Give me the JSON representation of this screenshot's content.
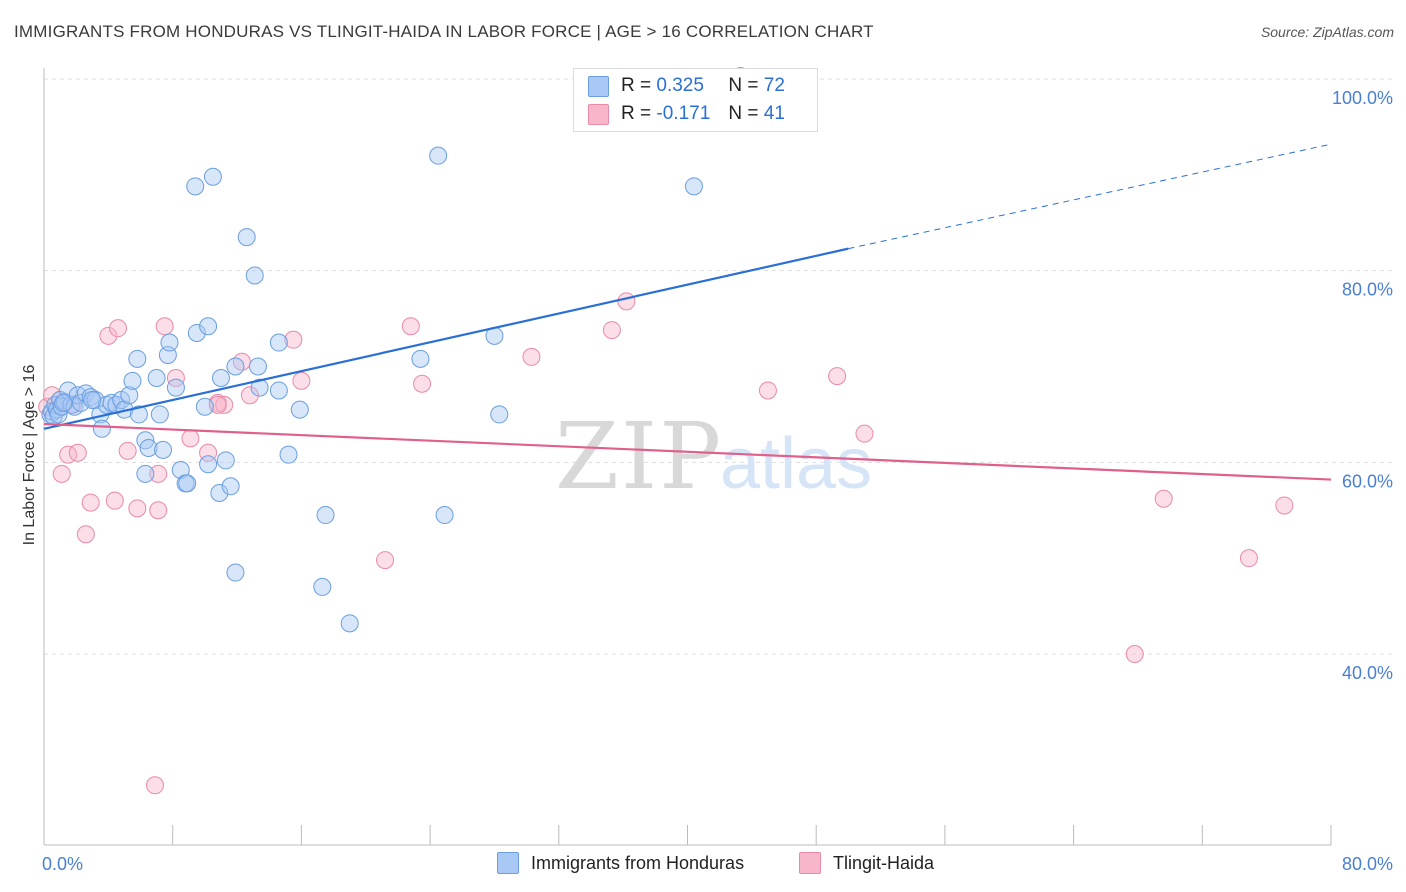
{
  "header": {
    "title": "IMMIGRANTS FROM HONDURAS VS TLINGIT-HAIDA IN LABOR FORCE | AGE > 16 CORRELATION CHART",
    "source": "Source: ZipAtlas.com"
  },
  "watermark": {
    "zip": "ZIP",
    "atlas": "atlas"
  },
  "legend": {
    "r_label": "R =",
    "n_label": "N =",
    "rows": [
      {
        "r": "0.325",
        "n": "72",
        "color": "#a9c8f5"
      },
      {
        "r": "-0.171",
        "n": "41",
        "color": "#f7b6c9"
      }
    ]
  },
  "bottom_legend": {
    "items": [
      {
        "label": "Immigrants from Honduras",
        "color": "#a9c8f5"
      },
      {
        "label": "Tlingit-Haida",
        "color": "#f7b6c9"
      }
    ]
  },
  "colors": {
    "blue_fill": "#a9c8f5",
    "blue_stroke": "#6a9ee0",
    "blue_line": "#2a6fd6",
    "pink_fill": "#f7b6c9",
    "pink_stroke": "#e98aa8",
    "pink_line": "#e05f8c",
    "grid": "#dddddd",
    "tick_text": "#4a7fd0"
  },
  "chart_data": {
    "type": "scatter",
    "title": "IMMIGRANTS FROM HONDURAS VS TLINGIT-HAIDA IN LABOR FORCE | AGE > 16 CORRELATION CHART",
    "xlabel": "",
    "ylabel": "In Labor Force | Age > 16",
    "xlim": [
      0,
      80
    ],
    "ylim": [
      20,
      102
    ],
    "x_ticks": [
      0,
      8,
      16,
      24,
      32,
      40,
      48,
      56,
      64,
      72,
      80
    ],
    "x_tick_labels": [
      {
        "value": 0,
        "label": "0.0%"
      },
      {
        "value": 80,
        "label": "80.0%"
      }
    ],
    "y_ticks": [
      {
        "value": 100,
        "label": "100.0%"
      },
      {
        "value": 80,
        "label": "80.0%"
      },
      {
        "value": 60,
        "label": "60.0%"
      },
      {
        "value": 40,
        "label": "40.0%"
      }
    ],
    "grid": true,
    "legend_position": "top-center",
    "series": [
      {
        "name": "Immigrants from Honduras",
        "color": "#a9c8f5",
        "points": [
          [
            0.4,
            65.0
          ],
          [
            0.5,
            65.3
          ],
          [
            0.6,
            64.8
          ],
          [
            0.7,
            66.0
          ],
          [
            0.8,
            65.5
          ],
          [
            0.9,
            65.0
          ],
          [
            1.0,
            66.5
          ],
          [
            1.1,
            65.8
          ],
          [
            1.3,
            66.3
          ],
          [
            1.5,
            67.5
          ],
          [
            1.7,
            66.0
          ],
          [
            1.9,
            65.8
          ],
          [
            2.1,
            67.0
          ],
          [
            2.3,
            66.2
          ],
          [
            2.6,
            67.2
          ],
          [
            2.9,
            66.8
          ],
          [
            3.2,
            66.5
          ],
          [
            3.5,
            65.0
          ],
          [
            3.6,
            63.5
          ],
          [
            3.9,
            66.0
          ],
          [
            4.2,
            66.2
          ],
          [
            4.5,
            66.0
          ],
          [
            4.8,
            66.5
          ],
          [
            5.0,
            65.5
          ],
          [
            5.3,
            67.0
          ],
          [
            5.5,
            68.5
          ],
          [
            5.9,
            65.0
          ],
          [
            5.8,
            70.8
          ],
          [
            6.3,
            62.3
          ],
          [
            6.5,
            61.5
          ],
          [
            6.3,
            58.8
          ],
          [
            7.0,
            68.8
          ],
          [
            7.2,
            65.0
          ],
          [
            7.4,
            61.3
          ],
          [
            7.7,
            71.2
          ],
          [
            7.8,
            72.5
          ],
          [
            8.2,
            67.8
          ],
          [
            8.5,
            59.2
          ],
          [
            8.8,
            57.8
          ],
          [
            8.9,
            57.8
          ],
          [
            9.4,
            88.8
          ],
          [
            9.5,
            73.5
          ],
          [
            10.0,
            65.8
          ],
          [
            10.2,
            59.8
          ],
          [
            10.5,
            89.8
          ],
          [
            10.2,
            74.2
          ],
          [
            10.9,
            56.8
          ],
          [
            11.0,
            68.8
          ],
          [
            11.3,
            60.2
          ],
          [
            11.6,
            57.5
          ],
          [
            11.9,
            70.0
          ],
          [
            11.9,
            48.5
          ],
          [
            12.6,
            83.5
          ],
          [
            13.1,
            79.5
          ],
          [
            13.3,
            70.0
          ],
          [
            13.4,
            67.8
          ],
          [
            14.6,
            67.5
          ],
          [
            14.6,
            72.5
          ],
          [
            15.2,
            60.8
          ],
          [
            15.9,
            65.5
          ],
          [
            17.5,
            54.5
          ],
          [
            17.3,
            47.0
          ],
          [
            19.0,
            43.2
          ],
          [
            23.4,
            70.8
          ],
          [
            24.5,
            92.0
          ],
          [
            24.9,
            54.5
          ],
          [
            28.0,
            73.2
          ],
          [
            28.3,
            65.0
          ],
          [
            40.4,
            88.8
          ],
          [
            43.3,
            100.3
          ],
          [
            1.2,
            66.2
          ],
          [
            3.0,
            66.5
          ]
        ]
      },
      {
        "name": "Tlingit-Haida",
        "color": "#f7b6c9",
        "points": [
          [
            0.2,
            65.8
          ],
          [
            0.5,
            67.0
          ],
          [
            1.0,
            66.5
          ],
          [
            1.1,
            58.8
          ],
          [
            1.5,
            60.8
          ],
          [
            2.1,
            61.0
          ],
          [
            2.6,
            52.5
          ],
          [
            2.9,
            55.8
          ],
          [
            4.0,
            73.2
          ],
          [
            4.4,
            56.0
          ],
          [
            4.6,
            74.0
          ],
          [
            5.2,
            61.2
          ],
          [
            5.8,
            55.2
          ],
          [
            6.9,
            26.3
          ],
          [
            7.1,
            55.0
          ],
          [
            7.1,
            58.8
          ],
          [
            7.5,
            74.2
          ],
          [
            8.2,
            68.8
          ],
          [
            9.1,
            62.5
          ],
          [
            10.2,
            61.0
          ],
          [
            10.8,
            66.2
          ],
          [
            11.2,
            66.0
          ],
          [
            12.3,
            70.5
          ],
          [
            12.8,
            67.0
          ],
          [
            15.5,
            72.8
          ],
          [
            16.0,
            68.5
          ],
          [
            21.2,
            49.8
          ],
          [
            22.8,
            74.2
          ],
          [
            23.5,
            68.2
          ],
          [
            30.3,
            71.0
          ],
          [
            35.3,
            73.8
          ],
          [
            36.2,
            76.8
          ],
          [
            45.0,
            67.5
          ],
          [
            49.3,
            69.0
          ],
          [
            51.0,
            63.0
          ],
          [
            67.8,
            40.0
          ],
          [
            69.6,
            56.2
          ],
          [
            74.9,
            50.0
          ],
          [
            77.1,
            55.5
          ],
          [
            10.8,
            66.0
          ],
          [
            1.8,
            66.0
          ]
        ]
      }
    ],
    "trend_lines": [
      {
        "series": "Immigrants from Honduras",
        "x_start": 0,
        "y_start": 63.5,
        "x_end": 50,
        "y_end": 82.3,
        "dashed_to_x": 80,
        "dashed_to_y": 93.2
      },
      {
        "series": "Tlingit-Haida",
        "x_start": 0,
        "y_start": 64.0,
        "x_end": 80,
        "y_end": 58.2
      }
    ]
  }
}
